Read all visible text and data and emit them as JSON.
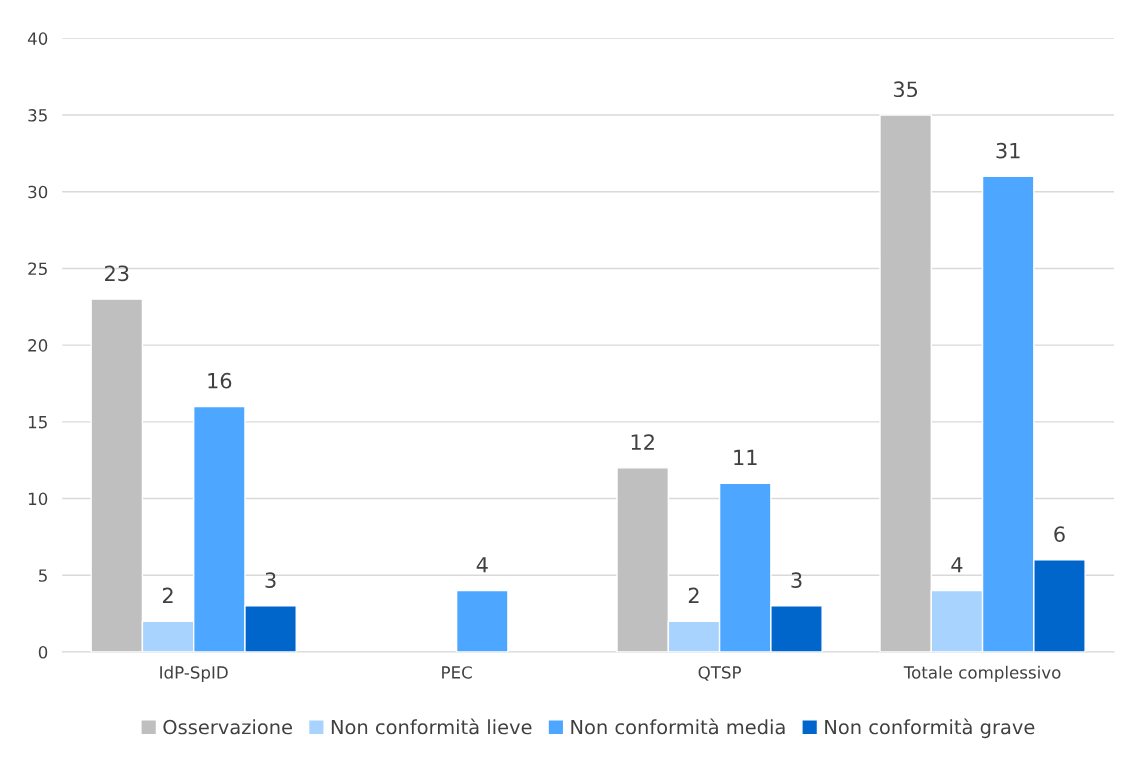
{
  "chart_data": {
    "type": "bar",
    "categories": [
      "IdP-SpID",
      "PEC",
      "QTSP",
      "Totale complessivo"
    ],
    "series": [
      {
        "name": "Osservazione",
        "color": "#bfbfbf",
        "values": [
          23,
          null,
          12,
          35
        ]
      },
      {
        "name": "Non conformità lieve",
        "color": "#a9d3ff",
        "values": [
          2,
          null,
          2,
          4
        ]
      },
      {
        "name": "Non conformità media",
        "color": "#4da6ff",
        "values": [
          16,
          4,
          11,
          31
        ]
      },
      {
        "name": "Non conformità grave",
        "color": "#0066cc",
        "values": [
          3,
          null,
          3,
          6
        ]
      }
    ],
    "ylim": [
      0,
      40
    ],
    "yticks": [
      0,
      5,
      10,
      15,
      20,
      25,
      30,
      35,
      40
    ],
    "grid": "y",
    "legend": "bottom",
    "data_labels": true
  }
}
